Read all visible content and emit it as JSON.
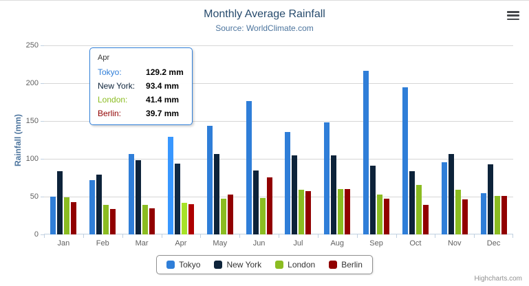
{
  "chart_data": {
    "type": "bar",
    "title": "Monthly Average Rainfall",
    "subtitle": "Source: WorldClimate.com",
    "xlabel": "",
    "ylabel": "Rainfall (mm)",
    "ylim": [
      0,
      250
    ],
    "yticks": [
      0,
      50,
      100,
      150,
      200,
      250
    ],
    "grid": true,
    "legend_position": "bottom",
    "categories": [
      "Jan",
      "Feb",
      "Mar",
      "Apr",
      "May",
      "Jun",
      "Jul",
      "Aug",
      "Sep",
      "Oct",
      "Nov",
      "Dec"
    ],
    "series": [
      {
        "name": "Tokyo",
        "color": "#2f7ed8",
        "values": [
          49.9,
          71.5,
          106.4,
          129.2,
          144.0,
          176.0,
          135.6,
          148.5,
          216.4,
          194.1,
          95.6,
          54.4
        ]
      },
      {
        "name": "New York",
        "color": "#0d233a",
        "values": [
          83.6,
          78.8,
          98.5,
          93.4,
          106.0,
          84.5,
          105.0,
          104.3,
          91.2,
          83.5,
          106.6,
          92.3
        ]
      },
      {
        "name": "London",
        "color": "#8bbc21",
        "values": [
          48.9,
          38.8,
          39.3,
          41.4,
          47.0,
          48.3,
          59.0,
          59.6,
          52.4,
          65.2,
          59.3,
          51.2
        ]
      },
      {
        "name": "Berlin",
        "color": "#910000",
        "values": [
          42.4,
          33.2,
          34.5,
          39.7,
          52.6,
          75.5,
          57.4,
          60.4,
          47.6,
          39.1,
          46.8,
          51.1
        ]
      }
    ]
  },
  "tooltip": {
    "category": "Apr",
    "category_index": 3,
    "border_color": "#2f7ed8",
    "rows": [
      {
        "name": "Tokyo",
        "value": "129.2 mm"
      },
      {
        "name": "New York",
        "value": "93.4 mm"
      },
      {
        "name": "London",
        "value": "41.4 mm"
      },
      {
        "name": "Berlin",
        "value": "39.7 mm"
      }
    ]
  },
  "menu": {
    "icon": "hamburger-icon"
  },
  "credits": "Highcharts.com"
}
